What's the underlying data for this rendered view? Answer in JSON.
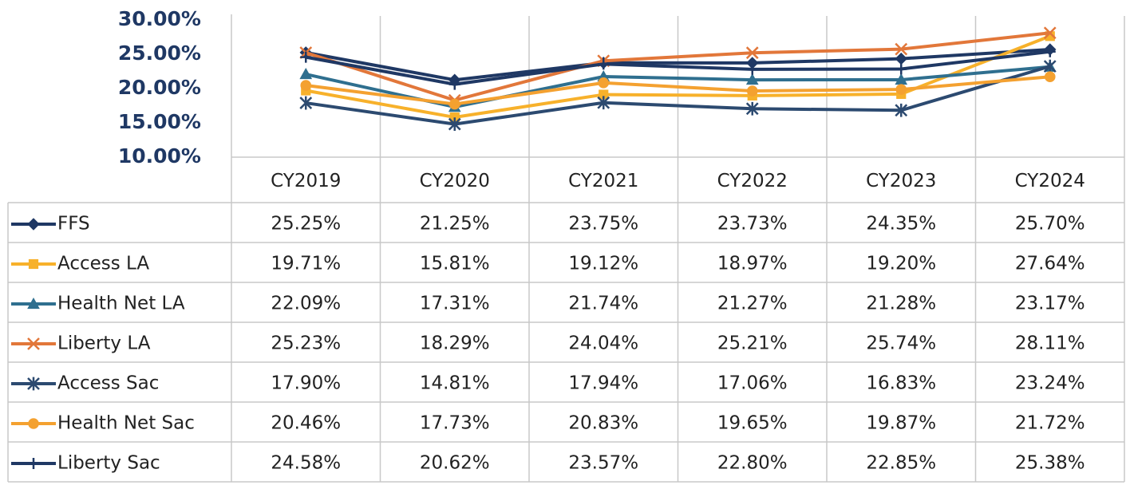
{
  "chart_data": {
    "type": "line",
    "categories": [
      "CY2019",
      "CY2020",
      "CY2021",
      "CY2022",
      "CY2023",
      "CY2024"
    ],
    "ylim": [
      10,
      30
    ],
    "yticks": [
      {
        "value": 10,
        "label": "10.00%"
      },
      {
        "value": 15,
        "label": "15.00%"
      },
      {
        "value": 20,
        "label": "20.00%"
      },
      {
        "value": 25,
        "label": "25.00%"
      },
      {
        "value": 30,
        "label": "30.00%"
      }
    ],
    "series": [
      {
        "name": "FFS",
        "color": "#1f3864",
        "marker": "diamond",
        "values": [
          25.25,
          21.25,
          23.75,
          23.73,
          24.35,
          25.7
        ],
        "value_labels": [
          "25.25%",
          "21.25%",
          "23.75%",
          "23.73%",
          "24.35%",
          "25.70%"
        ]
      },
      {
        "name": "Access LA",
        "color": "#f7b12b",
        "marker": "square",
        "values": [
          19.71,
          15.81,
          19.12,
          18.97,
          19.2,
          27.64
        ],
        "value_labels": [
          "19.71%",
          "15.81%",
          "19.12%",
          "18.97%",
          "19.20%",
          "27.64%"
        ]
      },
      {
        "name": "Health Net LA",
        "color": "#2f6f8f",
        "marker": "triangle",
        "values": [
          22.09,
          17.31,
          21.74,
          21.27,
          21.28,
          23.17
        ],
        "value_labels": [
          "22.09%",
          "17.31%",
          "21.74%",
          "21.27%",
          "21.28%",
          "23.17%"
        ]
      },
      {
        "name": "Liberty LA",
        "color": "#e2773a",
        "marker": "x",
        "values": [
          25.23,
          18.29,
          24.04,
          25.21,
          25.74,
          28.11
        ],
        "value_labels": [
          "25.23%",
          "18.29%",
          "24.04%",
          "25.21%",
          "25.74%",
          "28.11%"
        ]
      },
      {
        "name": "Access Sac",
        "color": "#2c4a70",
        "marker": "star",
        "values": [
          17.9,
          14.81,
          17.94,
          17.06,
          16.83,
          23.24
        ],
        "value_labels": [
          "17.90%",
          "14.81%",
          "17.94%",
          "17.06%",
          "16.83%",
          "23.24%"
        ]
      },
      {
        "name": "Health Net Sac",
        "color": "#f4a130",
        "marker": "circle",
        "values": [
          20.46,
          17.73,
          20.83,
          19.65,
          19.87,
          21.72
        ],
        "value_labels": [
          "20.46%",
          "17.73%",
          "20.83%",
          "19.65%",
          "19.87%",
          "21.72%"
        ]
      },
      {
        "name": "Liberty Sac",
        "color": "#1f3864",
        "marker": "plus",
        "values": [
          24.58,
          20.62,
          23.57,
          22.8,
          22.85,
          25.38
        ],
        "value_labels": [
          "24.58%",
          "20.62%",
          "23.57%",
          "22.80%",
          "22.85%",
          "25.38%"
        ]
      }
    ]
  }
}
